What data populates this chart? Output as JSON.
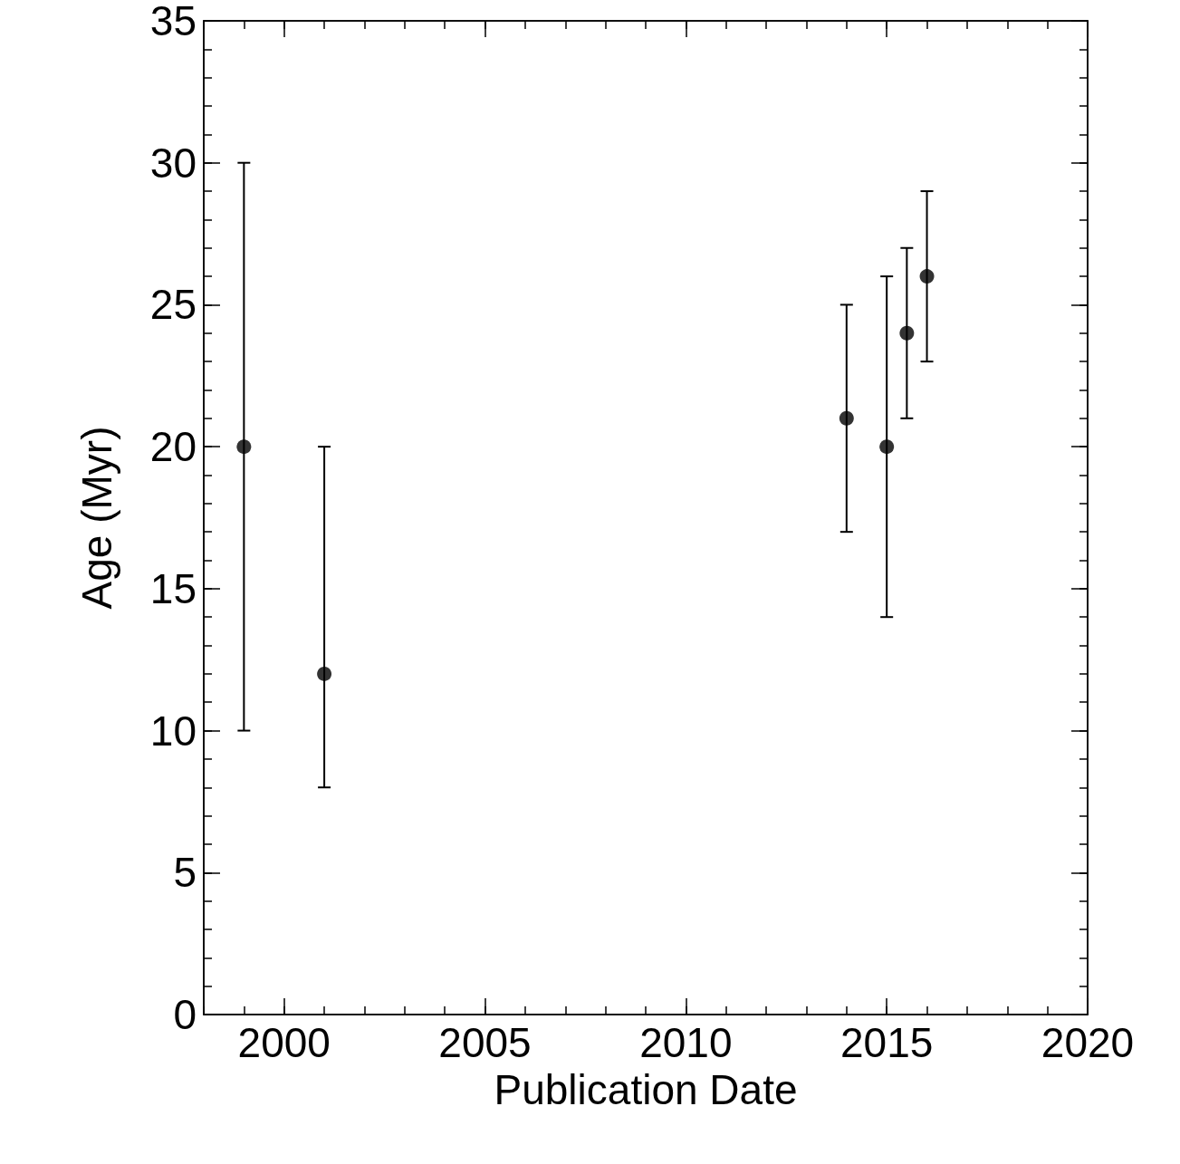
{
  "chart_data": {
    "type": "scatter",
    "xlabel": "Publication Date",
    "ylabel": "Age (Myr)",
    "x": [
      1999,
      2001,
      2014,
      2015,
      2015.5,
      2016
    ],
    "values": [
      20,
      12,
      21,
      20,
      24,
      26
    ],
    "errors": [
      10,
      [
        8,
        20
      ],
      4,
      6,
      3,
      3
    ],
    "color": "#000000",
    "marker": "circle",
    "xlim": [
      1998,
      2020
    ],
    "xticks": [
      2000,
      2005,
      2010,
      2015,
      2020
    ],
    "ylim": [
      0,
      35
    ],
    "yticks": [
      0,
      5,
      10,
      15,
      20,
      25,
      30,
      35
    ],
    "grid": false
  }
}
